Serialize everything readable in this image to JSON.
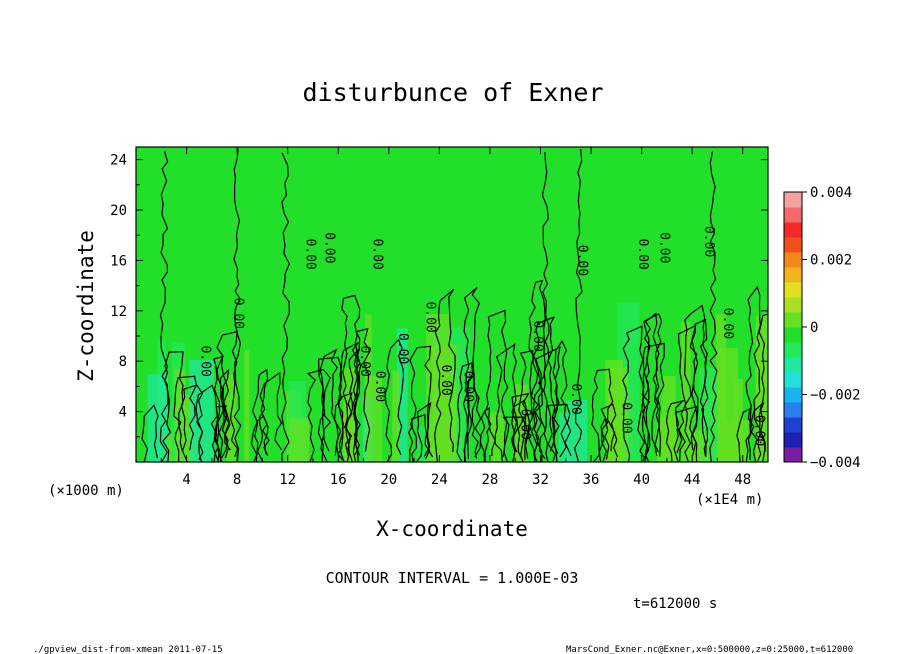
{
  "chart_data": {
    "type": "heatmap",
    "title": "disturbunce of Exner",
    "xlabel": "X-coordinate",
    "ylabel": "Z-coordinate",
    "x_unit_left": "(×1000 m)",
    "x_unit_right": "(×1E4 m)",
    "xlim": [
      0,
      50
    ],
    "ylim": [
      0,
      25
    ],
    "x_ticks": [
      "4",
      "8",
      "12",
      "16",
      "20",
      "24",
      "28",
      "32",
      "36",
      "40",
      "44",
      "48"
    ],
    "y_ticks": [
      "4",
      "8",
      "12",
      "16",
      "20",
      "24"
    ],
    "colorbar": {
      "range": [
        -0.004,
        0.004
      ],
      "tick_labels": [
        "0.004",
        "0.002",
        "0",
        "−0.002",
        "−0.004"
      ],
      "colors": [
        "#7b1fa2",
        "#1f1fb0",
        "#2040d0",
        "#2a7ef0",
        "#19b4f0",
        "#22e0d8",
        "#20e8a0",
        "#22e85a",
        "#22e02a",
        "#66e022",
        "#a8e022",
        "#e0e020",
        "#f2b41c",
        "#f28a1a",
        "#f2501a",
        "#f22a2a",
        "#f26a6a",
        "#f6a0a0"
      ]
    },
    "background_value": 0.0,
    "contour_labels": [
      "0.00"
    ],
    "contour_interval_text": "CONTOUR INTERVAL = 1.000E-03",
    "time_text": "t=612000 s"
  },
  "footer": {
    "left": "./gpview_dist-from-xmean  2011-07-15",
    "right": "MarsCond_Exner.nc@Exner,x=0:500000,z=0:25000,t=612000"
  }
}
